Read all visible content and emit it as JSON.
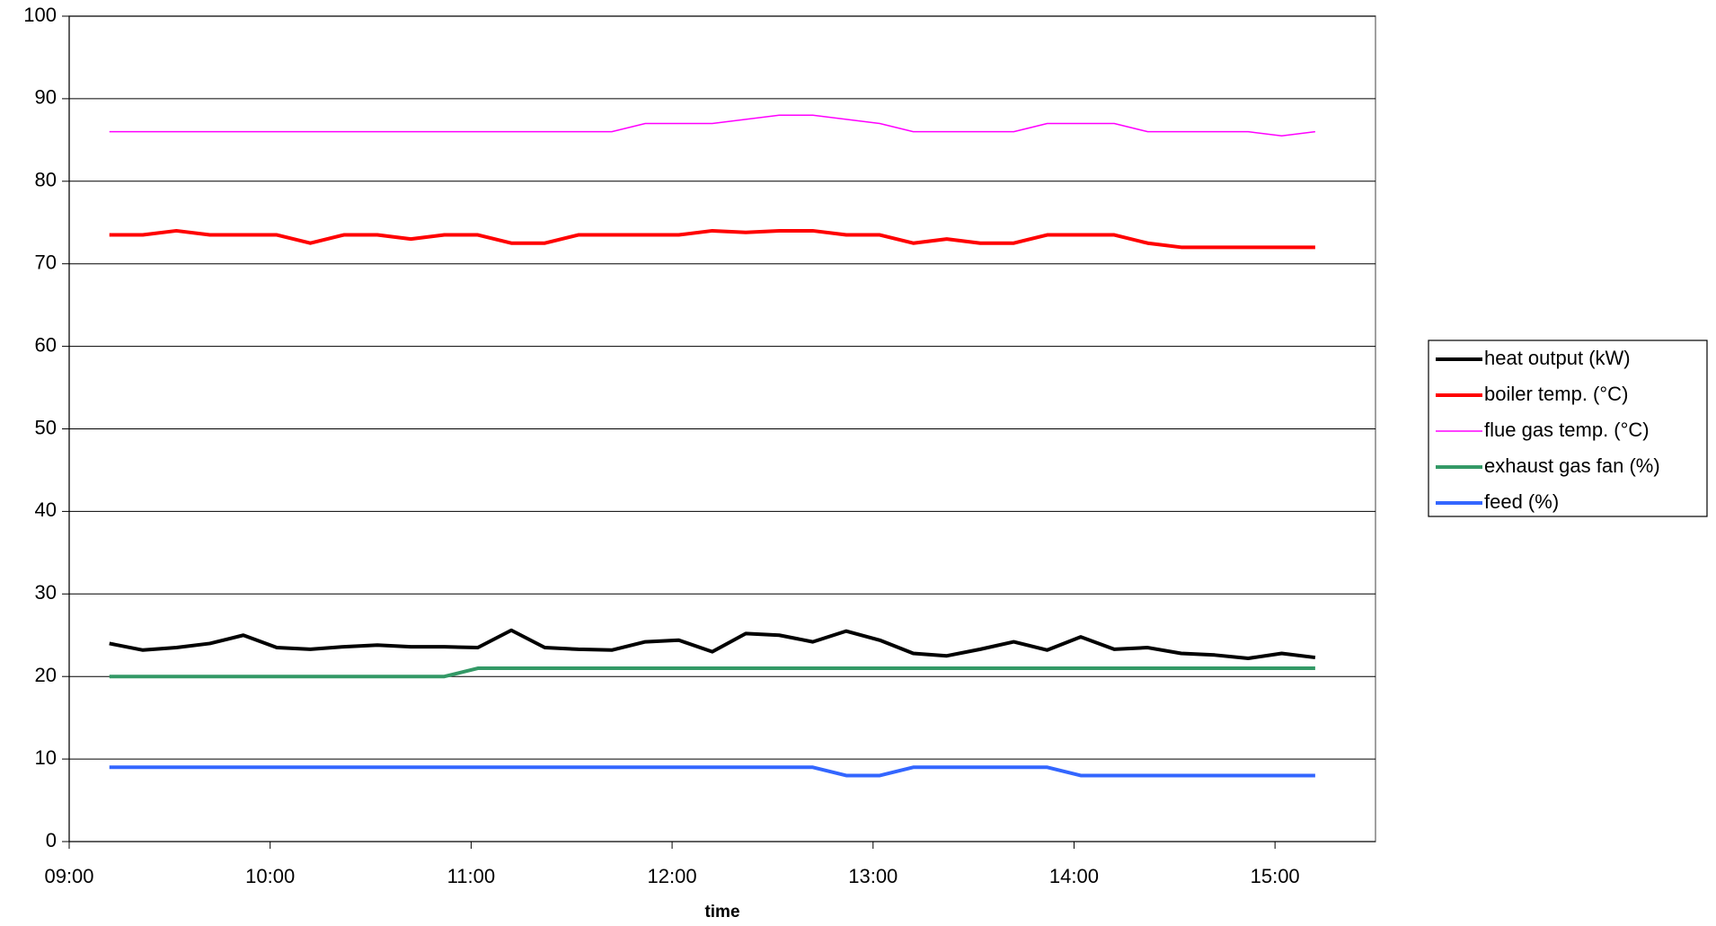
{
  "chart_data": {
    "type": "line",
    "x_label": "time",
    "x": [
      "09:12",
      "09:22",
      "09:32",
      "09:42",
      "09:52",
      "10:02",
      "10:12",
      "10:22",
      "10:32",
      "10:42",
      "10:52",
      "11:02",
      "11:12",
      "11:22",
      "11:32",
      "11:42",
      "11:52",
      "12:02",
      "12:12",
      "12:22",
      "12:32",
      "12:42",
      "12:52",
      "13:02",
      "13:12",
      "13:22",
      "13:32",
      "13:42",
      "13:52",
      "14:02",
      "14:12",
      "14:22",
      "14:32",
      "14:42",
      "14:52",
      "15:02",
      "15:12"
    ],
    "xlim": [
      "09:00",
      "15:30"
    ],
    "xticks": [
      "09:00",
      "10:00",
      "11:00",
      "12:00",
      "13:00",
      "14:00",
      "15:00"
    ],
    "ylim": [
      0,
      100
    ],
    "yticks": [
      0,
      10,
      20,
      30,
      40,
      50,
      60,
      70,
      80,
      90,
      100
    ],
    "grid": true,
    "legend": "right",
    "series": [
      {
        "name": "heat output (kW)",
        "color": "#000000",
        "width": 4,
        "values": [
          24,
          23.2,
          23.5,
          24,
          25,
          23.5,
          23.3,
          23.6,
          23.8,
          23.6,
          23.6,
          23.5,
          25.6,
          23.5,
          23.3,
          23.2,
          24.2,
          24.4,
          23,
          25.2,
          25,
          24.2,
          25.5,
          24.4,
          22.8,
          22.5,
          23.3,
          24.2,
          23.2,
          24.8,
          23.3,
          23.5,
          22.8,
          22.6,
          22.2,
          22.8,
          22.3
        ]
      },
      {
        "name": "boiler temp. (°C)",
        "color": "#ff0000",
        "width": 4,
        "values": [
          73.5,
          73.5,
          74,
          73.5,
          73.5,
          73.5,
          72.5,
          73.5,
          73.5,
          73,
          73.5,
          73.5,
          72.5,
          72.5,
          73.5,
          73.5,
          73.5,
          73.5,
          74,
          73.8,
          74,
          74,
          73.5,
          73.5,
          72.5,
          73,
          72.5,
          72.5,
          73.5,
          73.5,
          73.5,
          72.5,
          72,
          72,
          72,
          72,
          72
        ]
      },
      {
        "name": "flue gas temp. (°C)",
        "color": "#ff00ff",
        "width": 1.5,
        "values": [
          86,
          86,
          86,
          86,
          86,
          86,
          86,
          86,
          86,
          86,
          86,
          86,
          86,
          86,
          86,
          86,
          87,
          87,
          87,
          87.5,
          88,
          88,
          87.5,
          87,
          86,
          86,
          86,
          86,
          87,
          87,
          87,
          86,
          86,
          86,
          86,
          85.5,
          86
        ]
      },
      {
        "name": "exhaust gas fan (%)",
        "color": "#339966",
        "width": 4,
        "values": [
          20,
          20,
          20,
          20,
          20,
          20,
          20,
          20,
          20,
          20,
          20,
          21,
          21,
          21,
          21,
          21,
          21,
          21,
          21,
          21,
          21,
          21,
          21,
          21,
          21,
          21,
          21,
          21,
          21,
          21,
          21,
          21,
          21,
          21,
          21,
          21,
          21
        ]
      },
      {
        "name": "feed (%)",
        "color": "#3366ff",
        "width": 4,
        "values": [
          9,
          9,
          9,
          9,
          9,
          9,
          9,
          9,
          9,
          9,
          9,
          9,
          9,
          9,
          9,
          9,
          9,
          9,
          9,
          9,
          9,
          9,
          8,
          8,
          9,
          9,
          9,
          9,
          9,
          8,
          8,
          8,
          8,
          8,
          8,
          8,
          8
        ]
      }
    ]
  }
}
